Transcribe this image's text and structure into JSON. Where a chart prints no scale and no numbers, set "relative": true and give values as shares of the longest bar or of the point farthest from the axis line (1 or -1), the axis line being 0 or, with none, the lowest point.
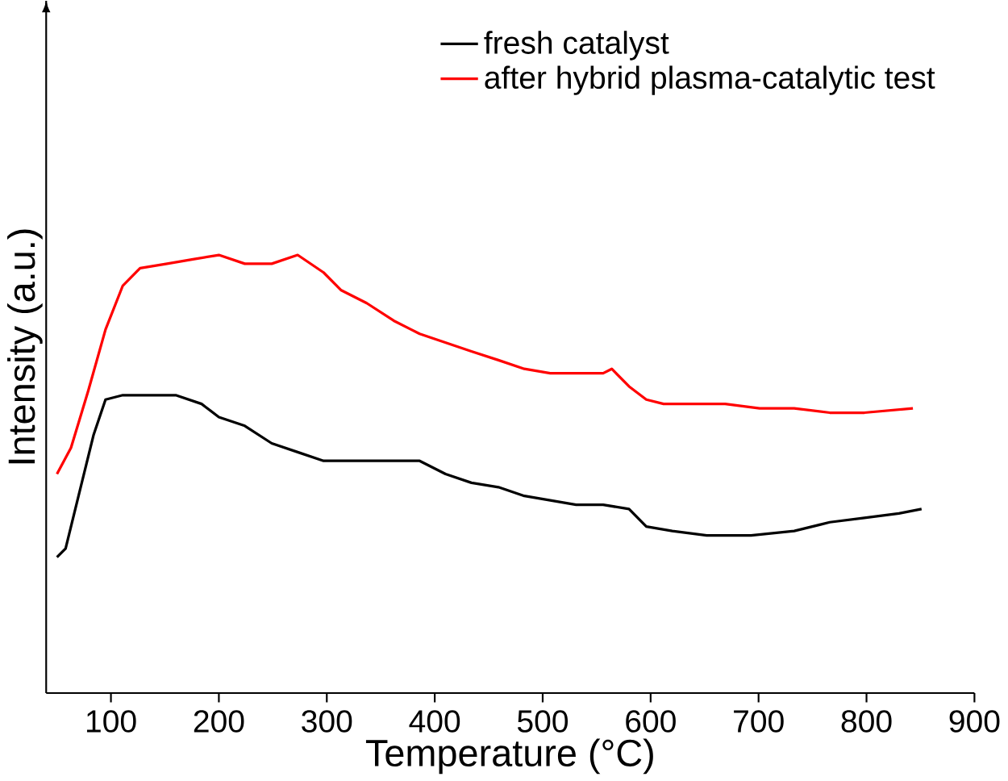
{
  "chart_data": {
    "type": "line",
    "xlabel": "Temperature (°C)",
    "ylabel": "Intensity (a.u.)",
    "relative": true,
    "xlim": [
      40,
      900
    ],
    "xticks": [
      100,
      200,
      300,
      400,
      500,
      600,
      700,
      800,
      900
    ],
    "legend": "top right",
    "marker": "none",
    "line_style": "solid",
    "series": [
      {
        "name": "fresh catalyst",
        "color": "#000000",
        "x": [
          50,
          58,
          71,
          84,
          95,
          111,
          136,
          160,
          184,
          200,
          224,
          249,
          273,
          297,
          329,
          362,
          386,
          410,
          434,
          459,
          483,
          507,
          531,
          556,
          580,
          596,
          620,
          652,
          693,
          733,
          766,
          798,
          830,
          851
        ],
        "values": [
          0.31,
          0.33,
          0.46,
          0.59,
          0.67,
          0.68,
          0.68,
          0.68,
          0.66,
          0.63,
          0.61,
          0.57,
          0.55,
          0.53,
          0.53,
          0.53,
          0.53,
          0.5,
          0.48,
          0.47,
          0.45,
          0.44,
          0.43,
          0.43,
          0.42,
          0.38,
          0.37,
          0.36,
          0.36,
          0.37,
          0.39,
          0.4,
          0.41,
          0.42
        ]
      },
      {
        "name": "after hybrid plasma-catalytic test",
        "color": "#ff0000",
        "x": [
          50,
          63,
          79,
          95,
          111,
          127,
          152,
          176,
          200,
          224,
          249,
          273,
          297,
          313,
          337,
          362,
          386,
          410,
          434,
          459,
          483,
          507,
          531,
          556,
          564,
          580,
          596,
          612,
          636,
          669,
          701,
          733,
          766,
          798,
          843
        ],
        "values": [
          0.5,
          0.56,
          0.69,
          0.83,
          0.93,
          0.97,
          0.98,
          0.99,
          1.0,
          0.98,
          0.98,
          1.0,
          0.96,
          0.92,
          0.89,
          0.85,
          0.82,
          0.8,
          0.78,
          0.76,
          0.74,
          0.73,
          0.73,
          0.73,
          0.74,
          0.7,
          0.67,
          0.66,
          0.66,
          0.66,
          0.65,
          0.65,
          0.64,
          0.64,
          0.65
        ]
      }
    ]
  }
}
